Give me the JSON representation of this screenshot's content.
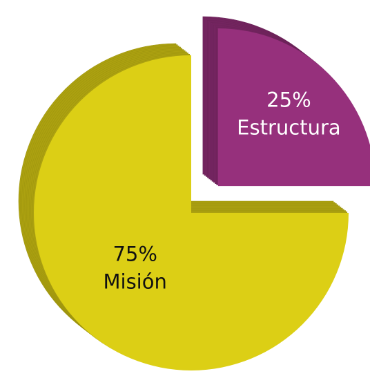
{
  "chart_data": {
    "type": "pie",
    "categories": [
      "Estructura",
      "Misión"
    ],
    "values": [
      25,
      75
    ],
    "value_labels": [
      "25%",
      "75%"
    ],
    "colors": [
      "#96307c",
      "#dccf15"
    ],
    "label_colors": [
      "#ffffff",
      "#111111"
    ],
    "exploded": [
      true,
      false
    ]
  }
}
